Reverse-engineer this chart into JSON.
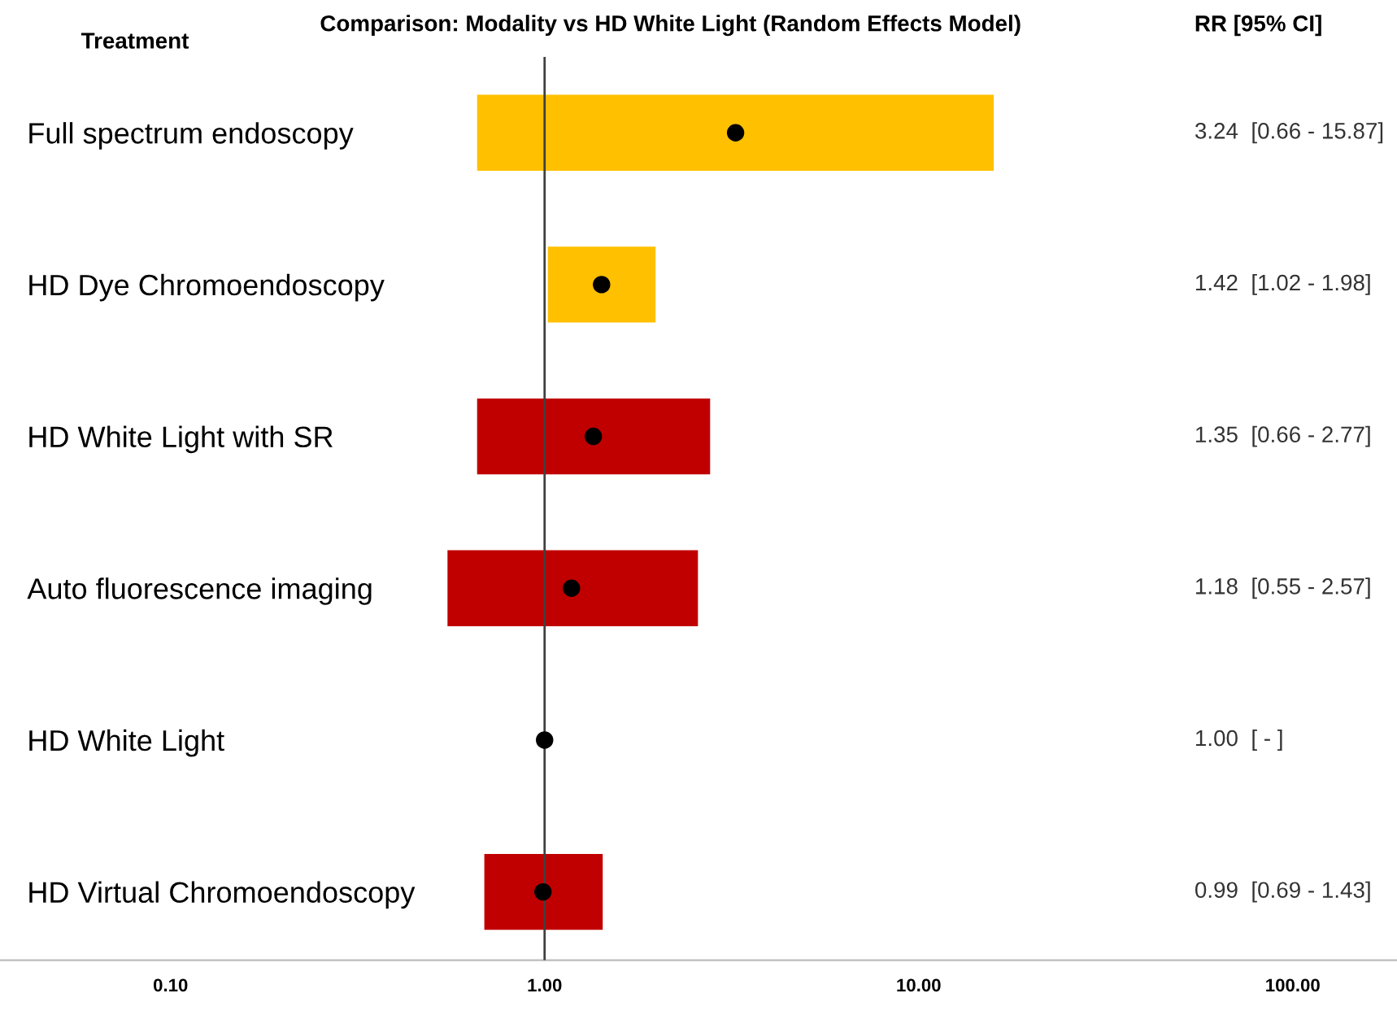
{
  "chart_data": {
    "type": "bar",
    "orientation": "horizontal",
    "title": "Comparison: Modality vs HD White Light (Random Effects Model)",
    "categories": [
      "Full spectrum endoscopy",
      "HD Dye Chromoendoscopy",
      "HD White Light with SR",
      "Auto fluorescence imaging",
      "HD White Light",
      "HD Virtual Chromoendoscopy"
    ],
    "series": [
      {
        "type": "bar",
        "base": [
          0.66,
          1.02,
          0.66,
          0.55,
          null,
          0.69
        ],
        "values": [
          15.21,
          0.96,
          2.11,
          2.02,
          null,
          0.74
        ],
        "colors": [
          "#ffc000",
          "#ffc000",
          "#c00000",
          "#c00000",
          "#c00000",
          "#c00000"
        ]
      },
      {
        "type": "scatter",
        "color": "#000000",
        "values": [
          3.24,
          1.42,
          1.35,
          1.18,
          1.0,
          0.99
        ]
      }
    ],
    "log": "x",
    "xlim": [
      0.035,
      190
    ],
    "xticks": [
      {
        "value": 0.1,
        "label": "0.10"
      },
      {
        "value": 1,
        "label": "1.00"
      },
      {
        "value": 10,
        "label": "10.00"
      },
      {
        "value": 100,
        "label": "100.00"
      }
    ],
    "ref_lines": [
      {
        "axis": "x",
        "value": 1,
        "color": "#404040"
      }
    ],
    "annotations": [
      "Treatment",
      "RR [95% CI]",
      "3.24  [0.66 - 15.87]",
      "1.42  [1.02 - 1.98]",
      "1.35  [0.66 - 2.77]",
      "1.18  [0.55 - 2.57]",
      "1.00  [ - ]",
      "0.99  [0.69 - 1.43]"
    ],
    "marker": "circle",
    "grid": false,
    "legend": false
  }
}
